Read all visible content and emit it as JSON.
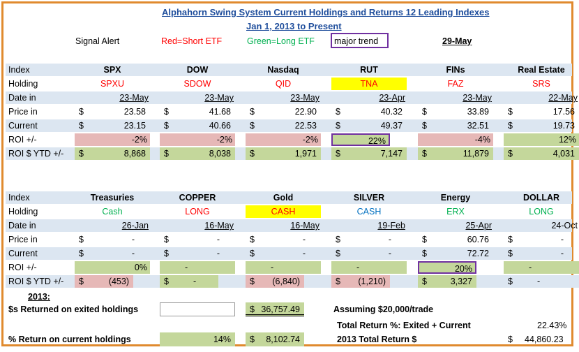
{
  "title": "Alphahorn Swing System Current Holdings and Returns 12 Leading Indexes",
  "subtitle": "Jan 1, 2013 to Present",
  "legend": {
    "signal_alert": "Signal Alert",
    "red_short": "Red=Short ETF",
    "green_long": "Green=Long ETF",
    "major_trend": "major trend",
    "date": "29-May"
  },
  "row_labels": {
    "index": "Index",
    "holding": "Holding",
    "date_in": "Date in",
    "price_in": "Price in",
    "current": "Current",
    "roi": "ROI +/-",
    "roi_ytd": "ROI $ YTD +/-"
  },
  "dollar": "$",
  "table1": [
    {
      "index": "SPX",
      "holding": "SPXU",
      "date_in": "23-May",
      "price_in": "23.58",
      "current": "23.15",
      "roi": "-2%",
      "roi_ytd": "8,868"
    },
    {
      "index": "DOW",
      "holding": "SDOW",
      "date_in": "23-May",
      "price_in": "41.68",
      "current": "40.66",
      "roi": "-2%",
      "roi_ytd": "8,038"
    },
    {
      "index": "Nasdaq",
      "holding": "QID",
      "date_in": "23-May",
      "price_in": "22.90",
      "current": "22.53",
      "roi": "-2%",
      "roi_ytd": "1,971"
    },
    {
      "index": "RUT",
      "holding": "TNA",
      "date_in": "23-Apr",
      "price_in": "40.32",
      "current": "49.37",
      "roi": "22%",
      "roi_ytd": "7,147"
    },
    {
      "index": "FINs",
      "holding": "FAZ",
      "date_in": "23-May",
      "price_in": "33.89",
      "current": "32.51",
      "roi": "-4%",
      "roi_ytd": "11,879"
    },
    {
      "index": "Real Estate",
      "holding": "SRS",
      "date_in": "22-May",
      "price_in": "17.56",
      "current": "19.73",
      "roi": "12%",
      "roi_ytd": "4,031"
    }
  ],
  "table2": [
    {
      "index": "Treasuries",
      "holding": "Cash",
      "date_in": "26-Jan",
      "price_in": "-",
      "current": "-",
      "roi": "0%",
      "roi_ytd": "(453)"
    },
    {
      "index": "COPPER",
      "holding": "LONG",
      "date_in": "16-May",
      "price_in": "-",
      "current": "-",
      "roi": "-",
      "roi_ytd": "-"
    },
    {
      "index": "Gold",
      "holding": "CASH",
      "date_in": "16-May",
      "price_in": "-",
      "current": "-",
      "roi": "-",
      "roi_ytd": "(6,840)"
    },
    {
      "index": "SILVER",
      "holding": "CASH",
      "date_in": "19-Feb",
      "price_in": "-",
      "current": "-",
      "roi": "-",
      "roi_ytd": "(1,210)"
    },
    {
      "index": "Energy",
      "holding": "ERX",
      "date_in": "25-Apr",
      "price_in": "60.76",
      "current": "72.72",
      "roi": "20%",
      "roi_ytd": "3,327"
    },
    {
      "index": "DOLLAR",
      "holding": "LONG",
      "date_in": "24-Oct",
      "price_in": "-",
      "current": "-",
      "roi": "-",
      "roi_ytd": "-"
    }
  ],
  "summary": {
    "year": "2013:",
    "exited_label": "$s Returned on exited holdings",
    "exited_value": "36,757.49",
    "assuming": "Assuming $20,000/trade",
    "total_return_label": "Total Return %: Exited + Current",
    "total_return_value": "22.43%",
    "current_label": "% Return on current holdings",
    "current_pct": "14%",
    "current_value": "8,102.74",
    "total_2013_label": "2013 Total Return $",
    "total_2013_value": "44,860.23"
  }
}
